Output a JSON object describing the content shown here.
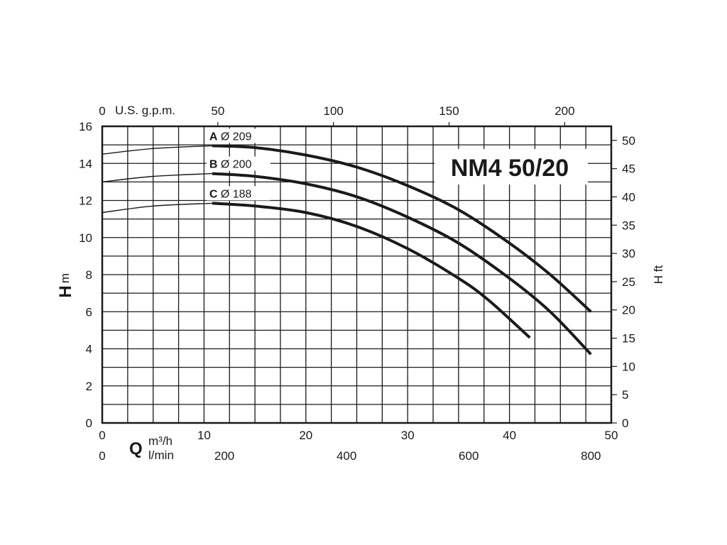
{
  "chart_data": {
    "type": "line",
    "title": "NM4 50/20",
    "x_unit_top": "U.S. g.p.m.",
    "x_unit_bottom_symbol": "Q",
    "x_unit_bottom_1": "m³/h",
    "x_unit_bottom_2": "l/min",
    "y_left_symbol": "H",
    "y_left_unit": "m",
    "y_right_label": "H ft",
    "xlim": [
      0,
      50
    ],
    "ylim": [
      0,
      16
    ],
    "x_ticks_m3h": [
      "0",
      "10",
      "20",
      "30",
      "40",
      "50"
    ],
    "x_ticks_lmin": [
      "0",
      "200",
      "400",
      "600",
      "800"
    ],
    "x_ticks_gpm": [
      "0",
      "50",
      "100",
      "150",
      "200"
    ],
    "y_ticks_m": [
      "0",
      "2",
      "4",
      "6",
      "8",
      "10",
      "12",
      "14",
      "16"
    ],
    "y_ticks_ft": [
      "0",
      "5",
      "10",
      "15",
      "20",
      "25",
      "30",
      "35",
      "40",
      "45",
      "50"
    ],
    "grid": true,
    "series": [
      {
        "letter": "A",
        "diameter": "Ø 209",
        "x": [
          0,
          5,
          10.8,
          15,
          20,
          25,
          30,
          35,
          40,
          44,
          48
        ],
        "y": [
          14.5,
          14.8,
          14.95,
          14.85,
          14.45,
          13.8,
          12.8,
          11.5,
          9.7,
          8.0,
          6.0
        ]
      },
      {
        "letter": "B",
        "diameter": "Ø 200",
        "x": [
          0,
          5,
          10.8,
          15,
          20,
          25,
          30,
          35,
          40,
          44,
          48
        ],
        "y": [
          13.0,
          13.3,
          13.45,
          13.3,
          12.9,
          12.2,
          11.1,
          9.7,
          7.8,
          6.0,
          3.7
        ]
      },
      {
        "letter": "C",
        "diameter": "Ø 188",
        "x": [
          0,
          5,
          10.8,
          15,
          20,
          25,
          30,
          35,
          38,
          42
        ],
        "y": [
          11.35,
          11.7,
          11.85,
          11.7,
          11.35,
          10.6,
          9.4,
          7.8,
          6.6,
          4.6
        ]
      }
    ]
  }
}
